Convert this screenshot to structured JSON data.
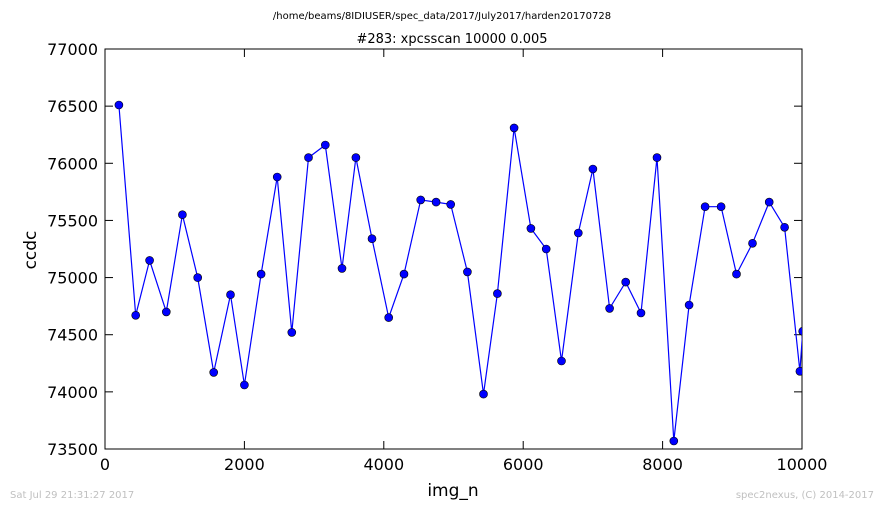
{
  "header": {
    "path": "/home/beams/8IDIUSER/spec_data/2017/July2017/harden20170728"
  },
  "footer": {
    "timestamp": "Sat Jul 29 21:31:27 2017",
    "credit": "spec2nexus, (C) 2014-2017"
  },
  "colors": {
    "series_line": "#0000ff",
    "series_marker": "#0000ff"
  },
  "chart_data": {
    "type": "line",
    "title": "#283: xpcsscan 10000 0.005",
    "xlabel": "img_n",
    "ylabel": "ccdc",
    "xlim": [
      0,
      10000
    ],
    "ylim": [
      73500,
      77000
    ],
    "xticks": [
      0,
      2000,
      4000,
      6000,
      8000,
      10000
    ],
    "xtick_labels": [
      "0",
      "2000",
      "4000",
      "6000",
      "8000",
      "10000"
    ],
    "yticks": [
      73500,
      74000,
      74500,
      75000,
      75500,
      76000,
      76500,
      77000
    ],
    "ytick_labels": [
      "73500",
      "74000",
      "74500",
      "75000",
      "75500",
      "76000",
      "76500",
      "77000"
    ],
    "grid": false,
    "series": [
      {
        "x": [
          200,
          440,
          640,
          880,
          1110,
          1330,
          1560,
          1800,
          2000,
          2240,
          2470,
          2680,
          2920,
          3160,
          3400,
          3600,
          3830,
          4070,
          4290,
          4530,
          4750,
          4960,
          5200,
          5430,
          5630,
          5870,
          6110,
          6330,
          6550,
          6790,
          7000,
          7240,
          7470,
          7690,
          7920,
          8160,
          8380,
          8610,
          8840,
          9060,
          9290,
          9530,
          9750,
          9970,
          10010
        ],
        "y": [
          76510,
          74670,
          75150,
          74700,
          75550,
          75000,
          74170,
          74850,
          74060,
          75030,
          75880,
          74520,
          76050,
          76160,
          75080,
          76050,
          75340,
          74650,
          75030,
          75680,
          75660,
          75640,
          75050,
          73980,
          74860,
          76310,
          75430,
          75250,
          74270,
          75390,
          75950,
          74730,
          74960,
          74690,
          76050,
          73570,
          74760,
          75620,
          75620,
          75030,
          75300,
          75660,
          75440,
          74180,
          74530
        ]
      }
    ]
  }
}
